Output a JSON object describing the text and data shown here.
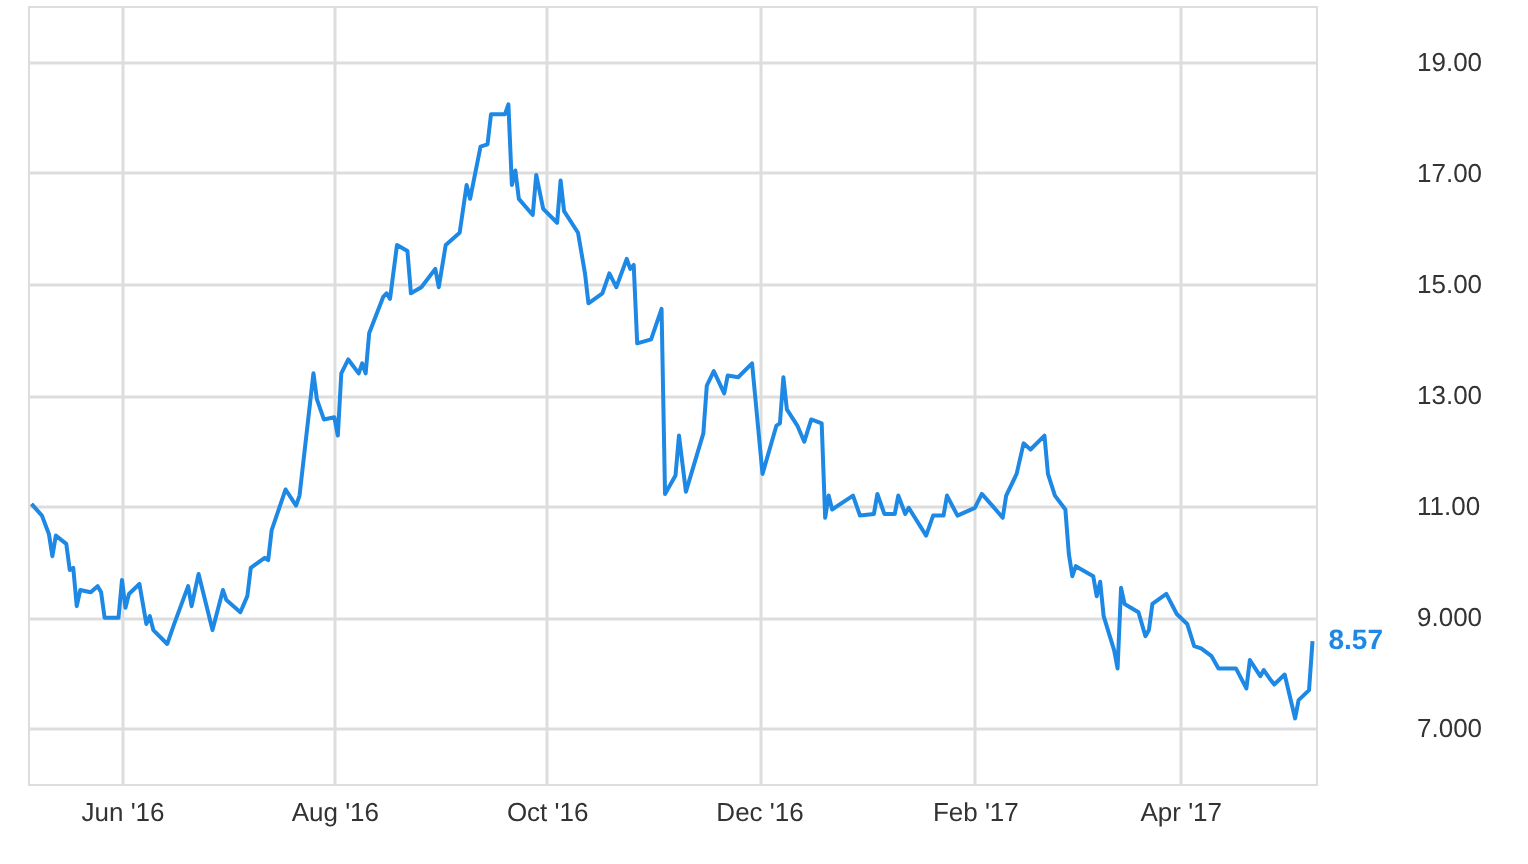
{
  "chart_data": {
    "type": "line",
    "xlim": [
      "2016-05-05",
      "2017-05-10"
    ],
    "ylim": [
      6,
      20
    ],
    "xticks": [
      {
        "value": "2016-06-01",
        "label": "Jun '16"
      },
      {
        "value": "2016-08-01",
        "label": "Aug '16"
      },
      {
        "value": "2016-10-01",
        "label": "Oct '16"
      },
      {
        "value": "2016-12-01",
        "label": "Dec '16"
      },
      {
        "value": "2017-02-01",
        "label": "Feb '17"
      },
      {
        "value": "2017-04-01",
        "label": "Apr '17"
      }
    ],
    "yticks": [
      {
        "value": 7,
        "label": "7.000"
      },
      {
        "value": 9,
        "label": "9.000"
      },
      {
        "value": 11,
        "label": "11.00"
      },
      {
        "value": 13,
        "label": "13.00"
      },
      {
        "value": 15,
        "label": "15.00"
      },
      {
        "value": 17,
        "label": "17.00"
      },
      {
        "value": 19,
        "label": "19.00"
      }
    ],
    "grid": true,
    "marker": "none",
    "line_style": "solid",
    "annotations": [
      {
        "text": "8.57",
        "x": "2017-05-09",
        "y": 8.57
      }
    ],
    "x": [
      "2016-05-06",
      "2016-05-09",
      "2016-05-11",
      "2016-05-12",
      "2016-05-13",
      "2016-05-16",
      "2016-05-17",
      "2016-05-18",
      "2016-05-19",
      "2016-05-20",
      "2016-05-23",
      "2016-05-25",
      "2016-05-26",
      "2016-05-27",
      "2016-05-31",
      "2016-06-01",
      "2016-06-02",
      "2016-06-03",
      "2016-06-06",
      "2016-06-08",
      "2016-06-09",
      "2016-06-10",
      "2016-06-14",
      "2016-06-16",
      "2016-06-20",
      "2016-06-21",
      "2016-06-23",
      "2016-06-27",
      "2016-06-30",
      "2016-07-01",
      "2016-07-05",
      "2016-07-07",
      "2016-07-08",
      "2016-07-12",
      "2016-07-13",
      "2016-07-14",
      "2016-07-18",
      "2016-07-21",
      "2016-07-22",
      "2016-07-26",
      "2016-07-27",
      "2016-07-29",
      "2016-08-01",
      "2016-08-02",
      "2016-08-03",
      "2016-08-05",
      "2016-08-08",
      "2016-08-09",
      "2016-08-10",
      "2016-08-11",
      "2016-08-15",
      "2016-08-16",
      "2016-08-17",
      "2016-08-19",
      "2016-08-22",
      "2016-08-23",
      "2016-08-26",
      "2016-08-30",
      "2016-08-31",
      "2016-09-02",
      "2016-09-06",
      "2016-09-08",
      "2016-09-09",
      "2016-09-12",
      "2016-09-14",
      "2016-09-15",
      "2016-09-19",
      "2016-09-20",
      "2016-09-21",
      "2016-09-22",
      "2016-09-23",
      "2016-09-27",
      "2016-09-28",
      "2016-09-30",
      "2016-10-04",
      "2016-10-05",
      "2016-10-06",
      "2016-10-10",
      "2016-10-12",
      "2016-10-13",
      "2016-10-17",
      "2016-10-19",
      "2016-10-21",
      "2016-10-24",
      "2016-10-25",
      "2016-10-26",
      "2016-10-27",
      "2016-10-31",
      "2016-11-03",
      "2016-11-04",
      "2016-11-07",
      "2016-11-08",
      "2016-11-10",
      "2016-11-15",
      "2016-11-16",
      "2016-11-18",
      "2016-11-21",
      "2016-11-22",
      "2016-11-25",
      "2016-11-29",
      "2016-12-02",
      "2016-12-06",
      "2016-12-07",
      "2016-12-08",
      "2016-12-09",
      "2016-12-12",
      "2016-12-14",
      "2016-12-16",
      "2016-12-19",
      "2016-12-20",
      "2016-12-21",
      "2016-12-22",
      "2016-12-28",
      "2016-12-30",
      "2017-01-03",
      "2017-01-04",
      "2017-01-06",
      "2017-01-09",
      "2017-01-10",
      "2017-01-12",
      "2017-01-13",
      "2017-01-18",
      "2017-01-20",
      "2017-01-23",
      "2017-01-24",
      "2017-01-27",
      "2017-02-01",
      "2017-02-03",
      "2017-02-06",
      "2017-02-09",
      "2017-02-10",
      "2017-02-13",
      "2017-02-15",
      "2017-02-17",
      "2017-02-21",
      "2017-02-22",
      "2017-02-24",
      "2017-02-27",
      "2017-02-28",
      "2017-03-01",
      "2017-03-02",
      "2017-03-07",
      "2017-03-08",
      "2017-03-09",
      "2017-03-10",
      "2017-03-13",
      "2017-03-14",
      "2017-03-15",
      "2017-03-16",
      "2017-03-20",
      "2017-03-22",
      "2017-03-23",
      "2017-03-24",
      "2017-03-28",
      "2017-03-31",
      "2017-04-03",
      "2017-04-05",
      "2017-04-07",
      "2017-04-10",
      "2017-04-12",
      "2017-04-17",
      "2017-04-20",
      "2017-04-21",
      "2017-04-24",
      "2017-04-25",
      "2017-04-27",
      "2017-04-28",
      "2017-05-01",
      "2017-05-04",
      "2017-05-05",
      "2017-05-08",
      "2017-05-09"
    ],
    "series": [
      {
        "color": "#1e88e5",
        "values": [
          11.04,
          10.83,
          10.5,
          10.1,
          10.47,
          10.32,
          9.85,
          9.89,
          9.2,
          9.49,
          9.45,
          9.56,
          9.45,
          8.99,
          8.99,
          9.67,
          9.17,
          9.42,
          9.6,
          8.88,
          9.02,
          8.77,
          8.52,
          8.88,
          9.56,
          9.2,
          9.78,
          8.77,
          9.49,
          9.31,
          9.09,
          9.38,
          9.89,
          10.07,
          10.03,
          10.57,
          11.3,
          11.01,
          11.19,
          13.39,
          12.92,
          12.56,
          12.6,
          12.27,
          13.39,
          13.64,
          13.39,
          13.57,
          13.39,
          14.11,
          14.76,
          14.83,
          14.73,
          15.7,
          15.59,
          14.83,
          14.94,
          15.27,
          14.94,
          15.7,
          15.92,
          16.78,
          16.53,
          17.47,
          17.51,
          18.05,
          18.05,
          18.23,
          16.78,
          17.04,
          16.53,
          16.24,
          16.96,
          16.35,
          16.1,
          16.86,
          16.31,
          15.92,
          15.19,
          14.65,
          14.83,
          15.19,
          14.94,
          15.45,
          15.27,
          15.34,
          13.93,
          14.0,
          14.55,
          11.22,
          11.55,
          12.27,
          11.26,
          12.31,
          13.17,
          13.43,
          13.03,
          13.35,
          13.32,
          13.57,
          11.58,
          12.45,
          12.49,
          13.32,
          12.74,
          12.45,
          12.16,
          12.56,
          12.49,
          10.79,
          11.19,
          10.94,
          11.19,
          10.83,
          10.86,
          11.22,
          10.86,
          10.86,
          11.19,
          10.86,
          10.97,
          10.47,
          10.83,
          10.83,
          11.19,
          10.83,
          10.97,
          11.22,
          11.01,
          10.79,
          11.19,
          11.58,
          12.13,
          12.02,
          12.27,
          11.58,
          11.19,
          10.94,
          10.14,
          9.74,
          9.92,
          9.74,
          9.38,
          9.64,
          9.02,
          8.41,
          8.08,
          9.53,
          9.24,
          9.09,
          8.66,
          8.77,
          9.24,
          9.42,
          9.06,
          8.88,
          8.48,
          8.44,
          8.3,
          8.08,
          8.08,
          7.72,
          8.23,
          7.94,
          8.05,
          7.87,
          7.79,
          7.97,
          7.18,
          7.51,
          7.69,
          8.57
        ]
      }
    ]
  }
}
